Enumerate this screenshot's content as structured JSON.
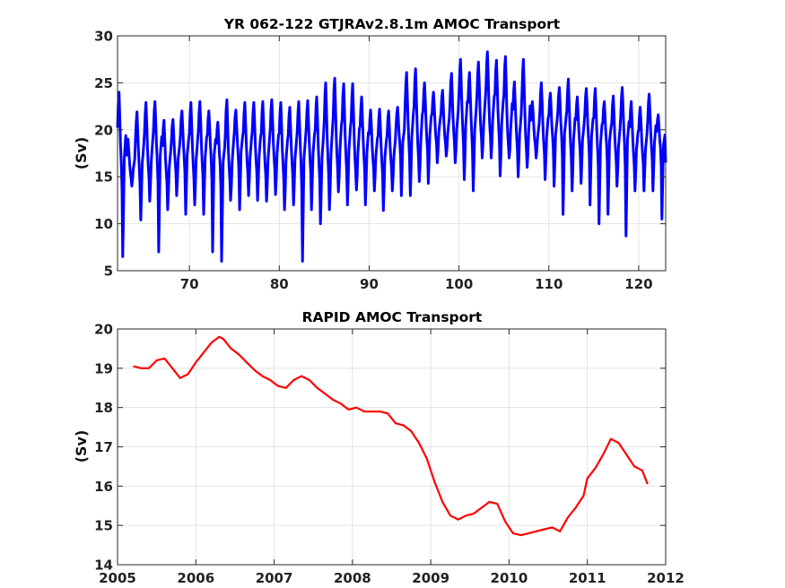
{
  "chart_data": [
    {
      "type": "line",
      "title": "YR 062-122 GTJRAv2.8.1m AMOC Transport",
      "xlabel": "",
      "ylabel": "(Sv)",
      "xlim": [
        62,
        123
      ],
      "ylim": [
        5,
        30
      ],
      "xticks": [
        70,
        80,
        90,
        100,
        110,
        120
      ],
      "yticks": [
        5,
        10,
        15,
        20,
        25,
        30
      ],
      "grid": true,
      "series": [
        {
          "color": "#0000ff",
          "samples_per_year": 12,
          "x_start": 62.0,
          "annual_mean": [
            15.6,
            15.2,
            15.4,
            15.5,
            16.2,
            15.0,
            16.1,
            16.5,
            15.7,
            16.0,
            16.5,
            15.8,
            15.2,
            16.9,
            16.0,
            16.1,
            15.7,
            16.4,
            15.6,
            15.9,
            15.9,
            16.4,
            15.8,
            16.0,
            16.4,
            16.5,
            16.2,
            16.6,
            16.4,
            16.1,
            16.3,
            18.1,
            18.0,
            17.6,
            18.5,
            18.9,
            18.8,
            19.0,
            19.3,
            19.0,
            19.6,
            19.7,
            19.4,
            18.7,
            18.6,
            18.5,
            18.6,
            18.2,
            18.7,
            18.8,
            17.8,
            18.1,
            18.5,
            17.5,
            18.0,
            17.2,
            17.9,
            17.0,
            17.1,
            17.7,
            17.7
          ],
          "annual_max": [
            24.0,
            19.0,
            21.9,
            22.9,
            23.0,
            21.0,
            21.1,
            22.0,
            22.9,
            23.0,
            22.0,
            20.8,
            23.2,
            22.1,
            22.9,
            22.9,
            23.0,
            23.2,
            22.9,
            22.4,
            23.0,
            23.1,
            23.5,
            25.0,
            25.5,
            24.9,
            24.9,
            23.5,
            22.1,
            22.2,
            22.0,
            22.4,
            26.1,
            26.5,
            25.0,
            24.0,
            24.2,
            26.0,
            27.5,
            26.1,
            27.2,
            28.3,
            27.4,
            27.8,
            25.1,
            27.5,
            23.0,
            25.0,
            23.9,
            24.5,
            25.4,
            23.5,
            24.4,
            24.4,
            23.0,
            23.6,
            24.5,
            23.0,
            22.4,
            23.8,
            21.6
          ],
          "annual_min": [
            6.5,
            14.0,
            10.4,
            12.4,
            7.0,
            11.5,
            13.0,
            11.0,
            12.0,
            11.0,
            7.0,
            6.0,
            12.5,
            11.5,
            13.0,
            12.5,
            12.4,
            13.1,
            11.5,
            12.0,
            6.0,
            11.5,
            10.0,
            11.5,
            13.4,
            12.0,
            13.6,
            12.0,
            13.5,
            11.4,
            13.5,
            13.0,
            13.0,
            14.5,
            14.3,
            16.5,
            17.2,
            16.5,
            14.7,
            13.5,
            17.0,
            17.0,
            15.1,
            17.0,
            15.0,
            16.0,
            17.0,
            14.7,
            14.0,
            11.0,
            13.5,
            14.3,
            12.0,
            10.0,
            11.0,
            14.0,
            8.7,
            13.5,
            13.5,
            13.5,
            10.5
          ]
        }
      ]
    },
    {
      "type": "line",
      "title": "RAPID AMOC Transport",
      "xlabel": "",
      "ylabel": "(Sv)",
      "xlim": [
        2005,
        2012
      ],
      "ylim": [
        14,
        20
      ],
      "xticks": [
        2005,
        2006,
        2007,
        2008,
        2009,
        2010,
        2011,
        2012
      ],
      "yticks": [
        14,
        15,
        16,
        17,
        18,
        19,
        20
      ],
      "grid": true,
      "series": [
        {
          "color": "#ff0000",
          "x": [
            2005.2,
            2005.3,
            2005.4,
            2005.5,
            2005.6,
            2005.7,
            2005.8,
            2005.9,
            2006.0,
            2006.1,
            2006.2,
            2006.3,
            2006.35,
            2006.45,
            2006.55,
            2006.65,
            2006.75,
            2006.85,
            2006.95,
            2007.05,
            2007.15,
            2007.25,
            2007.35,
            2007.45,
            2007.55,
            2007.65,
            2007.75,
            2007.85,
            2007.95,
            2008.05,
            2008.15,
            2008.25,
            2008.35,
            2008.45,
            2008.55,
            2008.65,
            2008.75,
            2008.85,
            2008.95,
            2009.05,
            2009.15,
            2009.25,
            2009.35,
            2009.45,
            2009.55,
            2009.65,
            2009.75,
            2009.85,
            2009.95,
            2010.05,
            2010.15,
            2010.25,
            2010.35,
            2010.45,
            2010.55,
            2010.65,
            2010.75,
            2010.85,
            2010.95,
            2011.0,
            2011.1,
            2011.2,
            2011.3,
            2011.4,
            2011.5,
            2011.6,
            2011.7,
            2011.77
          ],
          "y": [
            19.05,
            19.0,
            19.0,
            19.2,
            19.25,
            19.0,
            18.75,
            18.85,
            19.15,
            19.4,
            19.65,
            19.8,
            19.75,
            19.5,
            19.35,
            19.15,
            18.95,
            18.8,
            18.7,
            18.55,
            18.5,
            18.7,
            18.8,
            18.7,
            18.5,
            18.35,
            18.2,
            18.1,
            17.95,
            18.0,
            17.9,
            17.9,
            17.9,
            17.85,
            17.6,
            17.55,
            17.4,
            17.1,
            16.7,
            16.1,
            15.6,
            15.25,
            15.15,
            15.25,
            15.3,
            15.45,
            15.6,
            15.55,
            15.1,
            14.8,
            14.75,
            14.8,
            14.85,
            14.9,
            14.95,
            14.85,
            15.2,
            15.45,
            15.75,
            16.2,
            16.45,
            16.8,
            17.2,
            17.1,
            16.8,
            16.5,
            16.4,
            16.05
          ]
        }
      ]
    }
  ]
}
